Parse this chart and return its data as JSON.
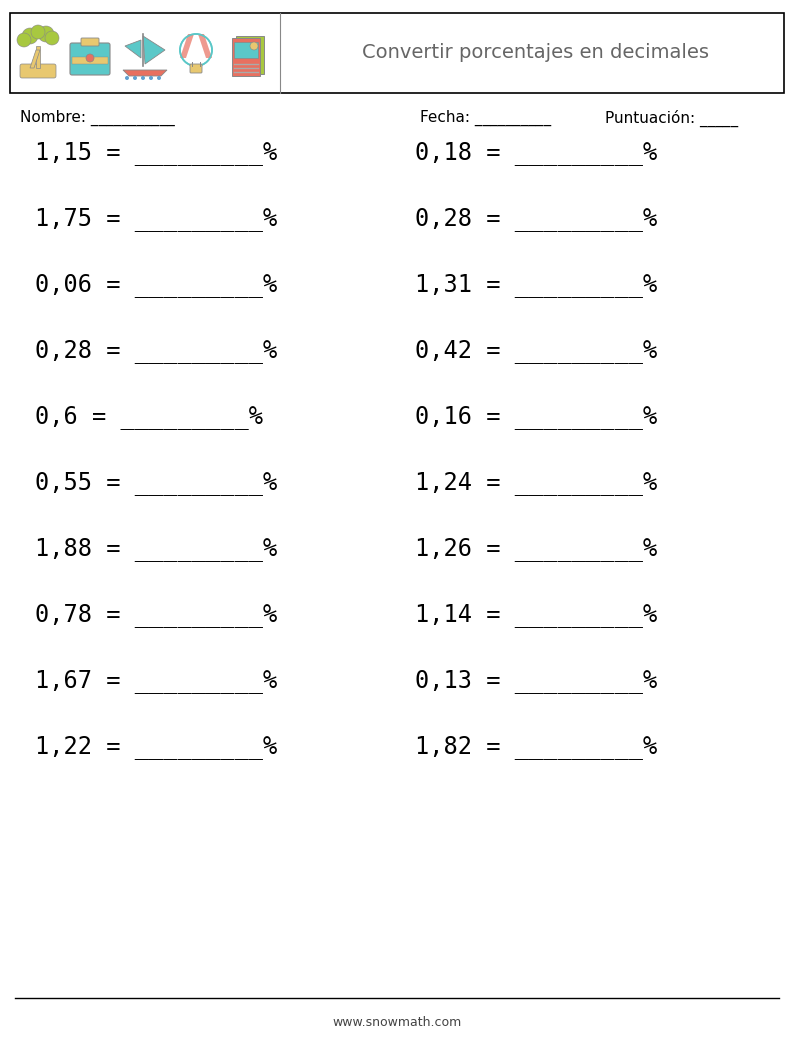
{
  "title": "Convertir porcentajes en decimales",
  "header_label_nombre": "Nombre: ___________",
  "header_label_fecha": "Fecha: __________",
  "header_label_puntuacion": "Puntuación: _____",
  "footer_text": "www.snowmath.com",
  "left_column": [
    "1,15",
    "1,75",
    "0,06",
    "0,28",
    "0,6",
    "0,55",
    "1,88",
    "0,78",
    "1,67",
    "1,22"
  ],
  "right_column": [
    "0,18",
    "0,28",
    "1,31",
    "0,42",
    "0,16",
    "1,24",
    "1,26",
    "1,14",
    "0,13",
    "1,82"
  ],
  "bg_color": "#ffffff",
  "text_color": "#000000",
  "title_color": "#666666",
  "header_box_color": "#000000",
  "font_size_problems": 17,
  "font_size_title": 14,
  "font_size_header": 11,
  "font_size_footer": 9,
  "icon_teal": "#5bc8c8",
  "icon_sand": "#e8c870",
  "icon_coral": "#e87060",
  "icon_green": "#a8c840",
  "icon_pink": "#e89090",
  "icon_blue": "#60a0d0",
  "icon_outline": "#888888"
}
